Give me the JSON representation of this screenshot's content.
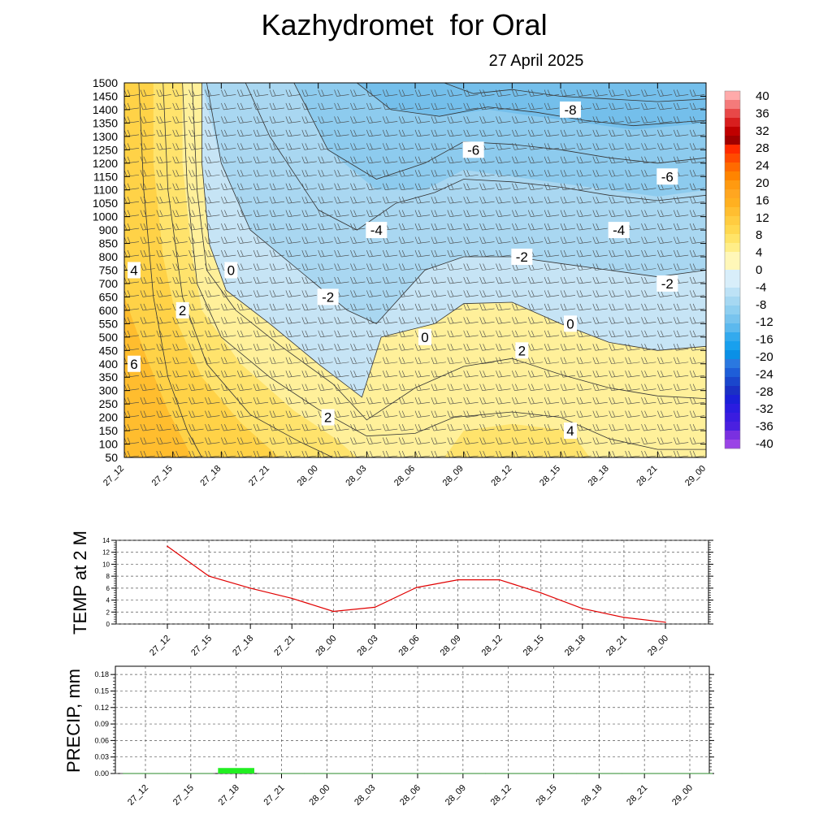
{
  "title": "Kazhydromet  for Oral",
  "subtitle": "27 April 2025",
  "colors": {
    "warm": [
      "#fff9c8",
      "#fff09a",
      "#ffe36c",
      "#ffd247",
      "#ffbd2e"
    ],
    "cold": [
      "#c6e4f5",
      "#a9d7f1",
      "#8dcbee",
      "#74bfeb"
    ],
    "temp_line": "#e00000",
    "precip_bar": "#22ee22"
  },
  "chart_data": [
    {
      "type": "heatmap",
      "name": "time-height cross section",
      "x_categories": [
        "27_12",
        "27_15",
        "27_18",
        "27_21",
        "28_00",
        "28_03",
        "28_06",
        "28_09",
        "28_12",
        "28_15",
        "28_18",
        "28_21",
        "29_00"
      ],
      "y_levels": [
        50,
        100,
        150,
        200,
        250,
        300,
        350,
        400,
        450,
        500,
        550,
        600,
        650,
        700,
        750,
        800,
        850,
        900,
        1000,
        1050,
        1100,
        1150,
        1200,
        1250,
        1300,
        1350,
        1400,
        1450,
        1500
      ],
      "color_scale": {
        "labels": [
          "40",
          "36",
          "32",
          "28",
          "24",
          "20",
          "16",
          "12",
          "8",
          "4",
          "0",
          "-4",
          "-8",
          "-12",
          "-16",
          "-20",
          "-24",
          "-28",
          "-32",
          "-36",
          "-40"
        ]
      },
      "contour_labels": [
        {
          "text": "-8",
          "x": "28_15",
          "y": 1400
        },
        {
          "text": "-6",
          "x": "28_09",
          "y": 1250
        },
        {
          "text": "-6",
          "x": "28_21",
          "y": 1130
        },
        {
          "text": "-4",
          "x": "28_03",
          "y": 900
        },
        {
          "text": "-4",
          "x": "28_18",
          "y": 900
        },
        {
          "text": "-2",
          "x": "28_12",
          "y": 800
        },
        {
          "text": "-2",
          "x": "28_21",
          "y": 680
        },
        {
          "text": "-2",
          "x": "28_00",
          "y": 650
        },
        {
          "text": "0",
          "x": "27_18",
          "y": 750
        },
        {
          "text": "0",
          "x": "28_15",
          "y": 570
        },
        {
          "text": "0",
          "x": "28_06",
          "y": 500
        },
        {
          "text": "2",
          "x": "28_12",
          "y": 440
        },
        {
          "text": "2",
          "x": "27_15",
          "y": 600
        },
        {
          "text": "2",
          "x": "28_00",
          "y": 200
        },
        {
          "text": "4",
          "x": "27_12",
          "y": 750
        },
        {
          "text": "4",
          "x": "28_15",
          "y": 160
        },
        {
          "text": "6",
          "x": "27_12",
          "y": 400
        }
      ]
    },
    {
      "type": "line",
      "ylabel": "TEMP at 2 M",
      "x": [
        "27_12",
        "27_15",
        "27_18",
        "27_21",
        "28_00",
        "28_03",
        "28_06",
        "28_09",
        "28_12",
        "28_15",
        "28_18",
        "28_21",
        "29_00"
      ],
      "values": [
        13,
        8,
        6,
        4.3,
        2.1,
        2.8,
        6.1,
        7.4,
        7.4,
        5.2,
        2.6,
        1.1,
        0.3
      ],
      "ylim": [
        0,
        14
      ],
      "yticks": [
        "0",
        "2",
        "4",
        "6",
        "8",
        "10",
        "12",
        "14"
      ]
    },
    {
      "type": "bar",
      "ylabel": "PRECIP, mm",
      "x": [
        "27_12",
        "27_15",
        "27_18",
        "27_21",
        "28_00",
        "28_03",
        "28_06",
        "28_09",
        "28_12",
        "28_15",
        "28_18",
        "28_21",
        "29_00"
      ],
      "values": [
        0,
        0,
        0.01,
        0,
        0,
        0,
        0,
        0,
        0,
        0,
        0,
        0,
        0
      ],
      "ylim": [
        0,
        0.195
      ],
      "yticks": [
        "0.00",
        "0.03",
        "0.06",
        "0.09",
        "0.12",
        "0.15",
        "0.18"
      ]
    }
  ]
}
